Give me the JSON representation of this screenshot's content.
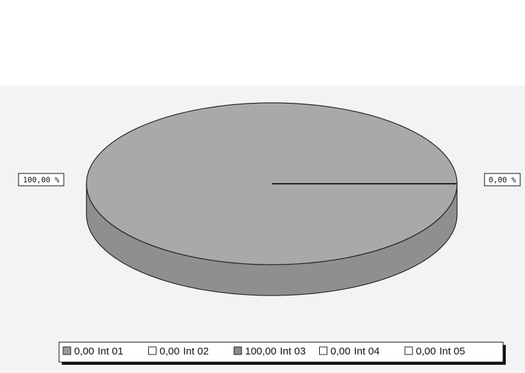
{
  "chart_data": {
    "type": "pie",
    "categories": [
      "Int 01",
      "Int 02",
      "Int 03",
      "Int 04",
      "Int 05"
    ],
    "values": [
      0,
      0,
      100,
      0,
      0
    ],
    "value_labels": [
      "0,00",
      "0,00",
      "100,00",
      "0,00",
      "0,00"
    ],
    "slice_labels": [
      null,
      null,
      "100,00 %",
      "0,00 %",
      null
    ],
    "colors": [
      "#9a9a9a",
      "#ffffff",
      "#8a8a8a",
      "#ffffff",
      "#ffffff"
    ],
    "pie_color": "#a9a9a9"
  }
}
